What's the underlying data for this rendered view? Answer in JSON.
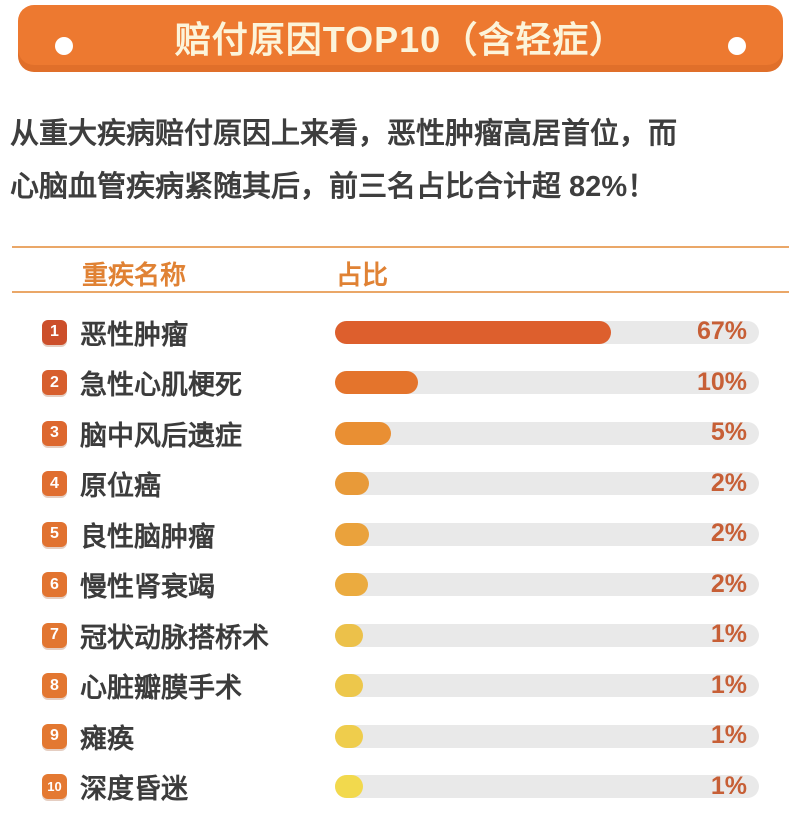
{
  "header": {
    "title": "赔付原因TOP10（含轻症）",
    "banner_color": "#ed7930",
    "title_color": "#fcf4da",
    "dot_color": "#ffffff"
  },
  "description": {
    "line1": "从重大疾病赔付原因上来看，恶性肿瘤高居首位，而",
    "line2": "心脑血管疾病紧随其后，前三名占比合计超 82%！"
  },
  "table": {
    "col1_header": "重疾名称",
    "col2_header": "占比",
    "header_text_color": "#e08234",
    "divider_color": "#eaa768"
  },
  "chart_data": {
    "type": "bar",
    "orientation": "horizontal",
    "title": "赔付原因TOP10（含轻症）",
    "xlabel": "占比",
    "ylabel": "重疾名称",
    "grid": false,
    "legend": "none",
    "ranks": [
      "1",
      "2",
      "3",
      "4",
      "5",
      "6",
      "7",
      "8",
      "9",
      "10"
    ],
    "categories": [
      "恶性肿瘤",
      "急性心肌梗死",
      "脑中风后遗症",
      "原位癌",
      "良性脑肿瘤",
      "慢性肾衰竭",
      "冠状动脉搭桥术",
      "心脏瓣膜手术",
      "瘫痪",
      "深度昏迷"
    ],
    "values": [
      67,
      10,
      5,
      2,
      2,
      2,
      1,
      1,
      1,
      1
    ],
    "value_labels": [
      "67%",
      "10%",
      "5%",
      "2%",
      "2%",
      "2%",
      "1%",
      "1%",
      "1%",
      "1%"
    ],
    "bar_visual_fractions": [
      0.65,
      0.196,
      0.132,
      0.08,
      0.08,
      0.078,
      0.066,
      0.066,
      0.066,
      0.066
    ],
    "bar_colors": [
      "#dd5f2d",
      "#e4742c",
      "#e98f33",
      "#e89a39",
      "#eaa23c",
      "#ebab3f",
      "#ecc14a",
      "#edc74b",
      "#efcd4c",
      "#f2d94d"
    ],
    "badge_colors": [
      "#cc4f2b",
      "#d75f2e",
      "#dd682f",
      "#e06e30",
      "#e17230",
      "#e27430",
      "#e27631",
      "#e37731",
      "#e37831",
      "#e47932"
    ],
    "track_color": "#e9e9e9",
    "value_text_color": "#c75f36"
  }
}
